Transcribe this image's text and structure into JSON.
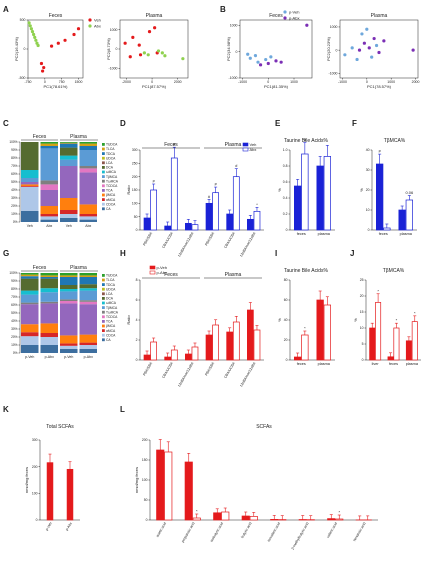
{
  "colors": {
    "red": "#e41a1c",
    "green": "#8fd14f",
    "blue": "#1a22d6",
    "lightblue": "#6fa8dc",
    "purple": "#7b2fb5",
    "black": "#222222"
  },
  "panels": {
    "A": {
      "label": "A",
      "titles": [
        "Feces",
        "Plasma"
      ],
      "legend": [
        "Veh",
        "Abx"
      ],
      "xlabels": [
        "PC1(78.61%)",
        "PC1(87.57%)"
      ],
      "ylabels": [
        "PC2(16.43%)",
        "PC2(8.73%)"
      ]
    },
    "B": {
      "label": "B",
      "titles": [
        "Feces",
        "Plasma"
      ],
      "legend": [
        "p-Veh",
        "p-Abx"
      ],
      "xlabels": [
        "PC1(81.35%)",
        "PC1(78.57%)"
      ],
      "ylabels": [
        "PC2(34.98%)",
        "PC2(20.23%)"
      ]
    },
    "C": {
      "label": "C"
    },
    "D": {
      "label": "D"
    },
    "E": {
      "label": "E"
    },
    "F": {
      "label": "F"
    },
    "G": {
      "label": "G"
    },
    "H": {
      "label": "H"
    },
    "I": {
      "label": "I"
    },
    "J": {
      "label": "J"
    },
    "K": {
      "label": "K"
    },
    "L": {
      "label": "L"
    }
  },
  "chart_data": [
    {
      "id": "A1",
      "type": "scatter",
      "title": "Feces",
      "xlabel": "PC1(78.61%)",
      "ylabel": "PC2(16.43%)",
      "xlim": [
        -750,
        1700
      ],
      "ylim": [
        -500,
        500
      ],
      "xticks": [
        "-750",
        "0",
        "750",
        "1500"
      ],
      "yticks": [
        "-500",
        "0",
        "500"
      ],
      "series": [
        {
          "name": "Veh",
          "color": "#e41a1c",
          "points": [
            [
              300,
              50
            ],
            [
              600,
              100
            ],
            [
              900,
              150
            ],
            [
              1300,
              250
            ],
            [
              1500,
              350
            ],
            [
              -150,
              -250
            ],
            [
              -100,
              -380
            ],
            [
              -50,
              -320
            ]
          ]
        },
        {
          "name": "Abx",
          "color": "#8fd14f",
          "points": [
            [
              -700,
              450
            ],
            [
              -650,
              400
            ],
            [
              -600,
              350
            ],
            [
              -550,
              300
            ],
            [
              -500,
              250
            ],
            [
              -450,
              200
            ],
            [
              -400,
              150
            ],
            [
              -350,
              100
            ],
            [
              -300,
              60
            ]
          ]
        }
      ]
    },
    {
      "id": "A2",
      "type": "scatter",
      "title": "Plasma",
      "xlabel": "PC1(87.57%)",
      "ylabel": "PC2(8.73%)",
      "xlim": [
        -2500,
        2800
      ],
      "ylim": [
        -1500,
        1500
      ],
      "xticks": [
        "-2000",
        "0",
        "2000"
      ],
      "yticks": [
        "-1000",
        "0",
        "1000"
      ],
      "series": [
        {
          "name": "Veh",
          "color": "#e41a1c",
          "points": [
            [
              -2100,
              300
            ],
            [
              -1500,
              600
            ],
            [
              -1000,
              200
            ],
            [
              -900,
              -300
            ],
            [
              -200,
              900
            ],
            [
              200,
              1100
            ],
            [
              400,
              -200
            ],
            [
              -1700,
              -400
            ]
          ]
        },
        {
          "name": "Abx",
          "color": "#8fd14f",
          "points": [
            [
              -600,
              -200
            ],
            [
              -300,
              -300
            ],
            [
              500,
              -100
            ],
            [
              800,
              -200
            ],
            [
              1000,
              -350
            ],
            [
              2400,
              -500
            ]
          ]
        }
      ]
    },
    {
      "id": "B1",
      "type": "scatter",
      "title": "Feces",
      "xlabel": "PC1(81.35%)",
      "ylabel": "PC2(34.98%)",
      "xlim": [
        -1100,
        1700
      ],
      "ylim": [
        -1000,
        1200
      ],
      "xticks": [
        "-1000",
        "0",
        "1000"
      ],
      "yticks": [
        "-1000",
        "0",
        "1000"
      ],
      "series": [
        {
          "name": "p-Veh",
          "color": "#6fa8dc",
          "points": [
            [
              -800,
              -100
            ],
            [
              -700,
              -250
            ],
            [
              -500,
              -150
            ],
            [
              -400,
              -400
            ],
            [
              -100,
              -300
            ],
            [
              100,
              -200
            ]
          ]
        },
        {
          "name": "p-Abx",
          "color": "#7b2fb5",
          "points": [
            [
              -300,
              -500
            ],
            [
              0,
              -450
            ],
            [
              300,
              -350
            ],
            [
              500,
              -400
            ],
            [
              1500,
              1000
            ]
          ]
        }
      ]
    },
    {
      "id": "B2",
      "type": "scatter",
      "title": "Plasma",
      "xlabel": "PC1(78.57%)",
      "ylabel": "PC2(20.23%)",
      "xlim": [
        -1100,
        2100
      ],
      "ylim": [
        -1200,
        1300
      ],
      "xticks": [
        "-1000",
        "0",
        "1000",
        "2000"
      ],
      "yticks": [
        "-1000",
        "0",
        "1000"
      ],
      "series": [
        {
          "name": "p-Veh",
          "color": "#6fa8dc",
          "points": [
            [
              -900,
              -200
            ],
            [
              -600,
              100
            ],
            [
              -400,
              -400
            ],
            [
              -200,
              700
            ],
            [
              0,
              900
            ],
            [
              200,
              -300
            ],
            [
              400,
              200
            ]
          ]
        },
        {
          "name": "p-Abx",
          "color": "#7b2fb5",
          "points": [
            [
              -300,
              0
            ],
            [
              -100,
              300
            ],
            [
              100,
              100
            ],
            [
              300,
              500
            ],
            [
              500,
              -100
            ],
            [
              700,
              400
            ],
            [
              1900,
              0
            ]
          ]
        }
      ]
    },
    {
      "id": "C",
      "type": "bar",
      "stacked": true,
      "group_labels": [
        "Feces",
        "Plasma"
      ],
      "categories": [
        "Veh",
        "Abx",
        "Veh",
        "Abx"
      ],
      "yticks": [
        "0%",
        "10%",
        "20%",
        "30%",
        "40%",
        "50%",
        "60%",
        "70%",
        "80%",
        "90%",
        "100%"
      ],
      "legend": [
        "TUDCA",
        "TLCA",
        "TDCA",
        "UDCA",
        "LCA",
        "DCA",
        "ωMCA",
        "TβMCA",
        "TωMCA",
        "TCDCA",
        "TCA",
        "βMCA",
        "αMCA",
        "CDCA",
        "CA"
      ],
      "legend_colors": [
        "#2ca02c",
        "#d4a017",
        "#1f77b4",
        "#bcbd22",
        "#8c564b",
        "#556b2f",
        "#17becf",
        "#5b9bd5",
        "#7f7f7f",
        "#e377c2",
        "#9467bd",
        "#ff7f0e",
        "#d62728",
        "#aec7e8",
        "#3c6e9f"
      ],
      "bars": [
        [
          0,
          0,
          0,
          0,
          0,
          35,
          10,
          5,
          0,
          0,
          3,
          2,
          1,
          30,
          14
        ],
        [
          2,
          3,
          3,
          0,
          0,
          0,
          0,
          40,
          5,
          7,
          20,
          10,
          3,
          4,
          3
        ],
        [
          1,
          1,
          5,
          0,
          0,
          10,
          5,
          8,
          0,
          0,
          40,
          15,
          5,
          5,
          5
        ],
        [
          2,
          3,
          5,
          0,
          0,
          0,
          0,
          20,
          3,
          5,
          40,
          12,
          3,
          4,
          3
        ]
      ]
    },
    {
      "id": "D",
      "type": "bar",
      "group_labels": [
        "Feces",
        "Plasma"
      ],
      "ylabel": "Ratio",
      "ylim": [
        0,
        300
      ],
      "yticks": [
        "0",
        "50",
        "100",
        "150",
        "200",
        "250",
        "300"
      ],
      "categories": [
        "PBA/SBA",
        "CBA/UCBA",
        "12αBA/non12αBA",
        "PBA/SBA",
        "CBA/UCBA",
        "12αBA/non12αBA"
      ],
      "series": [
        {
          "name": "Veh",
          "color": "#1a22d6",
          "values": [
            45,
            15,
            25,
            100,
            60,
            40
          ]
        },
        {
          "name": "Abx",
          "color": "#1a22d6",
          "hollow": true,
          "values": [
            150,
            270,
            20,
            140,
            200,
            70
          ]
        }
      ],
      "annotations": [
        "#",
        "#",
        "#",
        "#",
        "#",
        "*"
      ]
    },
    {
      "id": "E",
      "type": "bar",
      "title": "Taurine Bile Acids%",
      "ylabel": "%",
      "ylim": [
        0,
        1.0
      ],
      "yticks": [
        "0",
        "0.2",
        "0.4",
        "0.6",
        "0.8",
        "1.0"
      ],
      "categories": [
        "feces",
        "plasma"
      ],
      "series": [
        {
          "name": "Veh",
          "color": "#1a22d6",
          "values": [
            0.55,
            0.8
          ]
        },
        {
          "name": "Abx",
          "color": "#1a22d6",
          "hollow": true,
          "values": [
            0.95,
            0.92
          ]
        }
      ],
      "annotations": [
        "#"
      ]
    },
    {
      "id": "F",
      "type": "bar",
      "title": "TβMCA%",
      "ylabel": "%",
      "ylim": [
        0,
        40
      ],
      "yticks": [
        "0",
        "10",
        "20",
        "30",
        "40"
      ],
      "categories": [
        "feces",
        "plasma"
      ],
      "series": [
        {
          "name": "Veh",
          "color": "#1a22d6",
          "values": [
            33,
            10
          ]
        },
        {
          "name": "Abx",
          "color": "#1a22d6",
          "hollow": true,
          "values": [
            1,
            15
          ]
        }
      ],
      "annotations": [
        "#",
        "0.06"
      ]
    },
    {
      "id": "G",
      "type": "bar",
      "stacked": true,
      "group_labels": [
        "Feces",
        "Plasma"
      ],
      "categories": [
        "p-Veh",
        "p-Abx",
        "p-Veh",
        "p-Abx"
      ],
      "yticks": [
        "0%",
        "10%",
        "20%",
        "30%",
        "40%",
        "50%",
        "60%",
        "70%",
        "80%",
        "90%",
        "100%"
      ],
      "legend": [
        "TUDCA",
        "TLCA",
        "TDCA",
        "UDCA",
        "LCA",
        "DCA",
        "ωMCA",
        "TβMCA",
        "TωMCA",
        "TCDCA",
        "TCA",
        "βMCA",
        "αMCA",
        "CDCA",
        "CA"
      ],
      "legend_colors": [
        "#2ca02c",
        "#d4a017",
        "#1f77b4",
        "#bcbd22",
        "#8c564b",
        "#556b2f",
        "#17becf",
        "#5b9bd5",
        "#7f7f7f",
        "#e377c2",
        "#9467bd",
        "#ff7f0e",
        "#d62728",
        "#aec7e8",
        "#3c6e9f"
      ],
      "bars": [
        [
          2,
          2,
          3,
          0,
          0,
          15,
          5,
          10,
          2,
          0,
          25,
          10,
          5,
          11,
          10
        ],
        [
          3,
          2,
          2,
          0,
          0,
          12,
          5,
          12,
          2,
          0,
          25,
          12,
          5,
          10,
          10
        ],
        [
          3,
          2,
          10,
          0,
          0,
          5,
          3,
          10,
          2,
          3,
          40,
          10,
          3,
          4,
          5
        ],
        [
          3,
          2,
          9,
          0,
          0,
          5,
          3,
          12,
          2,
          3,
          38,
          10,
          3,
          5,
          5
        ]
      ]
    },
    {
      "id": "H",
      "type": "bar",
      "group_labels": [
        "Feces",
        "Plasma"
      ],
      "ylabel": "Ratio",
      "ylim": [
        0,
        8
      ],
      "yticks": [
        "0",
        "2",
        "4",
        "6",
        "8"
      ],
      "categories": [
        "PBA/SBA",
        "CBA/UCBA",
        "12αBA/non12αBA",
        "PBA/SBA",
        "CBA/UCBA",
        "12αBA/non12αBA"
      ],
      "series": [
        {
          "name": "p-Veh",
          "color": "#e41a1c",
          "values": [
            0.5,
            0.3,
            0.6,
            2.5,
            2.8,
            5.0
          ]
        },
        {
          "name": "p-Abx",
          "color": "#e41a1c",
          "hollow": true,
          "values": [
            1.8,
            1.0,
            1.3,
            3.5,
            3.8,
            3.0
          ]
        }
      ]
    },
    {
      "id": "I",
      "type": "bar",
      "title": "Taurine Bile Acids%",
      "ylabel": "%",
      "ylim": [
        0,
        80
      ],
      "yticks": [
        "0",
        "20",
        "40",
        "60",
        "80"
      ],
      "categories": [
        "feces",
        "plasma"
      ],
      "series": [
        {
          "name": "p-Veh",
          "color": "#e41a1c",
          "values": [
            3,
            60
          ]
        },
        {
          "name": "p-Abx",
          "color": "#e41a1c",
          "hollow": true,
          "values": [
            25,
            55
          ]
        }
      ],
      "annotations": [
        "*"
      ]
    },
    {
      "id": "J",
      "type": "bar",
      "title": "TβMCA%",
      "ylabel": "%",
      "ylim": [
        0,
        25
      ],
      "yticks": [
        "0",
        "5",
        "10",
        "15",
        "20",
        "25"
      ],
      "categories": [
        "liver",
        "feces",
        "plasma"
      ],
      "series": [
        {
          "name": "p-Veh",
          "color": "#e41a1c",
          "values": [
            10,
            1,
            6
          ]
        },
        {
          "name": "p-Abx",
          "color": "#e41a1c",
          "hollow": true,
          "values": [
            18,
            10,
            12
          ]
        }
      ],
      "annotations": [
        "*",
        "*",
        "*"
      ]
    },
    {
      "id": "K",
      "type": "bar",
      "title": "Total SCFAs",
      "ylabel": "nmol/mg feces",
      "ylim": [
        0,
        300
      ],
      "yticks": [
        "0",
        "100",
        "200",
        "300"
      ],
      "categories": [
        "p-Veh",
        "p-Abx"
      ],
      "series": [
        {
          "name": "",
          "color": "#e41a1c",
          "values": [
            215,
            190
          ]
        }
      ]
    },
    {
      "id": "L",
      "type": "bar",
      "title": "SCFAs",
      "ylabel": "nmol/mg feces",
      "ylim": [
        0,
        200
      ],
      "yticks": [
        "0",
        "50",
        "100",
        "150",
        "200"
      ],
      "categories": [
        "acetic acid",
        "propanoic acid",
        "isobutyric acid",
        "butyric acid",
        "isovaleric acid",
        "2-methylbutyric acid",
        "valeric acid",
        "hexanoic acid"
      ],
      "series": [
        {
          "name": "p-Veh",
          "color": "#e41a1c",
          "values": [
            175,
            145,
            18,
            10,
            1.5,
            1.2,
            3.5,
            0.2
          ]
        },
        {
          "name": "p-Abx",
          "color": "#e41a1c",
          "hollow": true,
          "values": [
            170,
            5,
            20,
            9,
            1.0,
            0.8,
            2.5,
            0.3
          ]
        }
      ],
      "annotations": [
        "*",
        "*"
      ]
    }
  ]
}
